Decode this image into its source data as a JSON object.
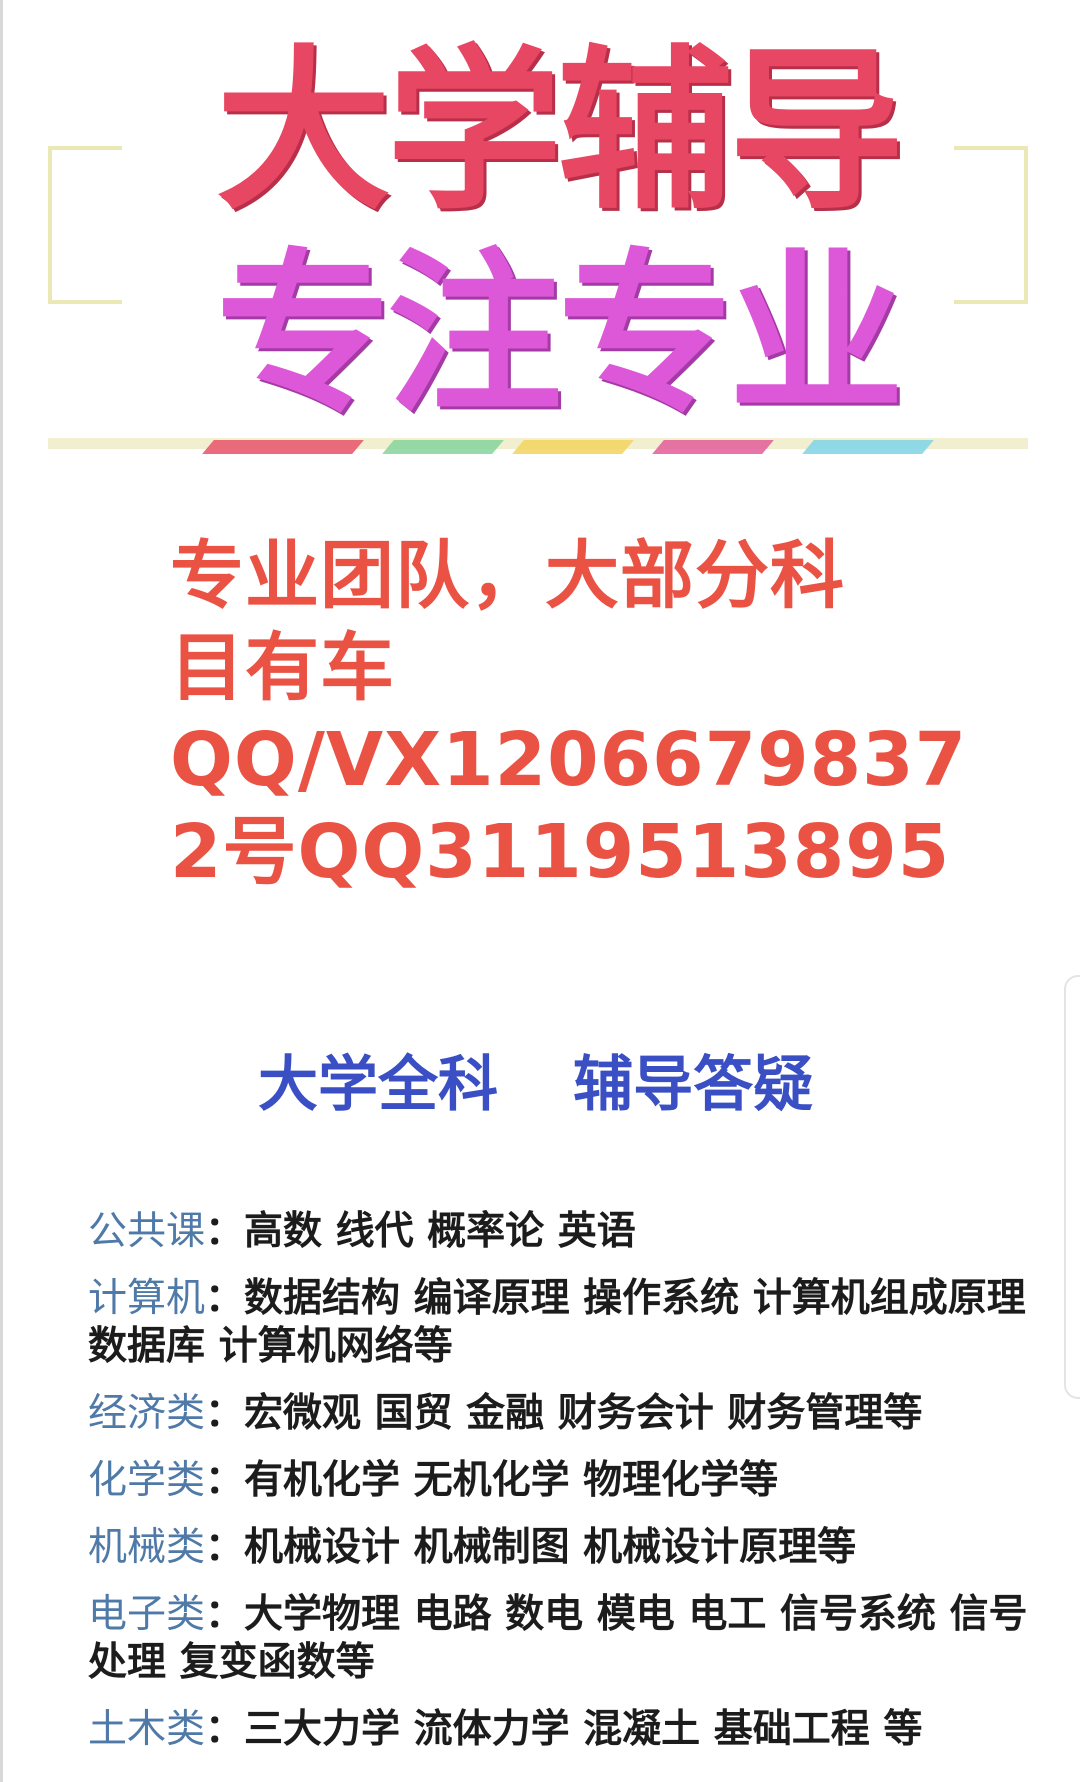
{
  "banner": {
    "title": "大学辅导",
    "subtitle": "专注专业"
  },
  "promo": {
    "lines": [
      "专业团队，大部分科",
      "目有车",
      "QQ/VX1206679837",
      "2号QQ3119513895"
    ]
  },
  "heading": {
    "left": "大学全科",
    "right": "辅导答疑"
  },
  "courses": [
    {
      "category": "公共课",
      "items": "高数 线代  概率论  英语"
    },
    {
      "category": "计算机",
      "items": "数据结构 编译原理 操作系统 计算机组成原理  数据库 计算机网络等"
    },
    {
      "category": "经济类",
      "items": "宏微观 国贸 金融 财务会计  财务管理等"
    },
    {
      "category": "化学类",
      "items": "有机化学 无机化学  物理化学等"
    },
    {
      "category": "机械类",
      "items": "机械设计 机械制图  机械设计原理等"
    },
    {
      "category": "电子类",
      "items": "大学物理 电路 数电 模电 电工 信号系统 信号处理  复变函数等"
    },
    {
      "category": "土木类",
      "items": "三大力学 流体力学 混凝土 基础工程 等"
    }
  ],
  "colors": {
    "title_red": "#e74762",
    "subtitle_pink": "#dd58d8",
    "promo_red": "#ea5244",
    "heading_blue": "#3a4fc4",
    "category_blue": "#4f7aa8"
  }
}
